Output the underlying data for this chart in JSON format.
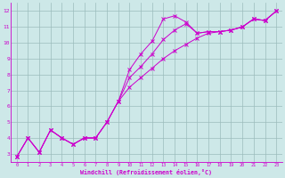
{
  "xlabel": "Windchill (Refroidissement éolien,°C)",
  "bg_color": "#cde8e8",
  "grid_color": "#9bbcbc",
  "line_color": "#cc00cc",
  "xlim": [
    -0.5,
    23.5
  ],
  "ylim": [
    2.5,
    12.5
  ],
  "xticks": [
    0,
    1,
    2,
    3,
    4,
    5,
    6,
    7,
    8,
    9,
    10,
    11,
    12,
    13,
    14,
    15,
    16,
    17,
    18,
    19,
    20,
    21,
    22,
    23
  ],
  "yticks": [
    3,
    4,
    5,
    6,
    7,
    8,
    9,
    10,
    11,
    12
  ],
  "s1": [
    [
      0,
      2.8
    ],
    [
      1,
      4.0
    ],
    [
      2,
      3.1
    ],
    [
      3,
      4.5
    ],
    [
      4,
      4.0
    ],
    [
      5,
      3.6
    ],
    [
      6,
      4.0
    ],
    [
      7,
      4.0
    ],
    [
      8,
      5.0
    ],
    [
      9,
      6.3
    ],
    [
      10,
      8.3
    ],
    [
      11,
      9.3
    ],
    [
      12,
      10.1
    ],
    [
      13,
      11.5
    ],
    [
      14,
      11.7
    ],
    [
      15,
      11.3
    ],
    [
      16,
      10.6
    ],
    [
      17,
      10.7
    ],
    [
      18,
      10.7
    ],
    [
      19,
      10.8
    ],
    [
      20,
      11.0
    ],
    [
      21,
      11.5
    ],
    [
      22,
      11.4
    ],
    [
      23,
      12.0
    ]
  ],
  "s2": [
    [
      0,
      2.8
    ],
    [
      1,
      4.0
    ],
    [
      2,
      3.1
    ],
    [
      3,
      4.5
    ],
    [
      4,
      4.0
    ],
    [
      5,
      3.6
    ],
    [
      6,
      4.0
    ],
    [
      7,
      4.0
    ],
    [
      8,
      5.0
    ],
    [
      9,
      6.3
    ],
    [
      10,
      7.2
    ],
    [
      11,
      7.8
    ],
    [
      12,
      8.4
    ],
    [
      13,
      9.0
    ],
    [
      14,
      9.5
    ],
    [
      15,
      9.9
    ],
    [
      16,
      10.3
    ],
    [
      17,
      10.6
    ],
    [
      18,
      10.7
    ],
    [
      19,
      10.8
    ],
    [
      20,
      11.0
    ],
    [
      21,
      11.5
    ],
    [
      22,
      11.4
    ],
    [
      23,
      12.0
    ]
  ],
  "s3": [
    [
      0,
      2.8
    ],
    [
      1,
      4.0
    ],
    [
      2,
      3.1
    ],
    [
      3,
      4.5
    ],
    [
      4,
      4.0
    ],
    [
      5,
      3.6
    ],
    [
      6,
      4.0
    ],
    [
      7,
      4.0
    ],
    [
      8,
      5.0
    ],
    [
      9,
      6.3
    ],
    [
      10,
      7.8
    ],
    [
      11,
      8.5
    ],
    [
      12,
      9.3
    ],
    [
      13,
      10.2
    ],
    [
      14,
      10.8
    ],
    [
      15,
      11.2
    ],
    [
      16,
      10.6
    ],
    [
      17,
      10.7
    ],
    [
      18,
      10.7
    ],
    [
      19,
      10.8
    ],
    [
      20,
      11.0
    ],
    [
      21,
      11.5
    ],
    [
      22,
      11.4
    ],
    [
      23,
      12.0
    ]
  ]
}
